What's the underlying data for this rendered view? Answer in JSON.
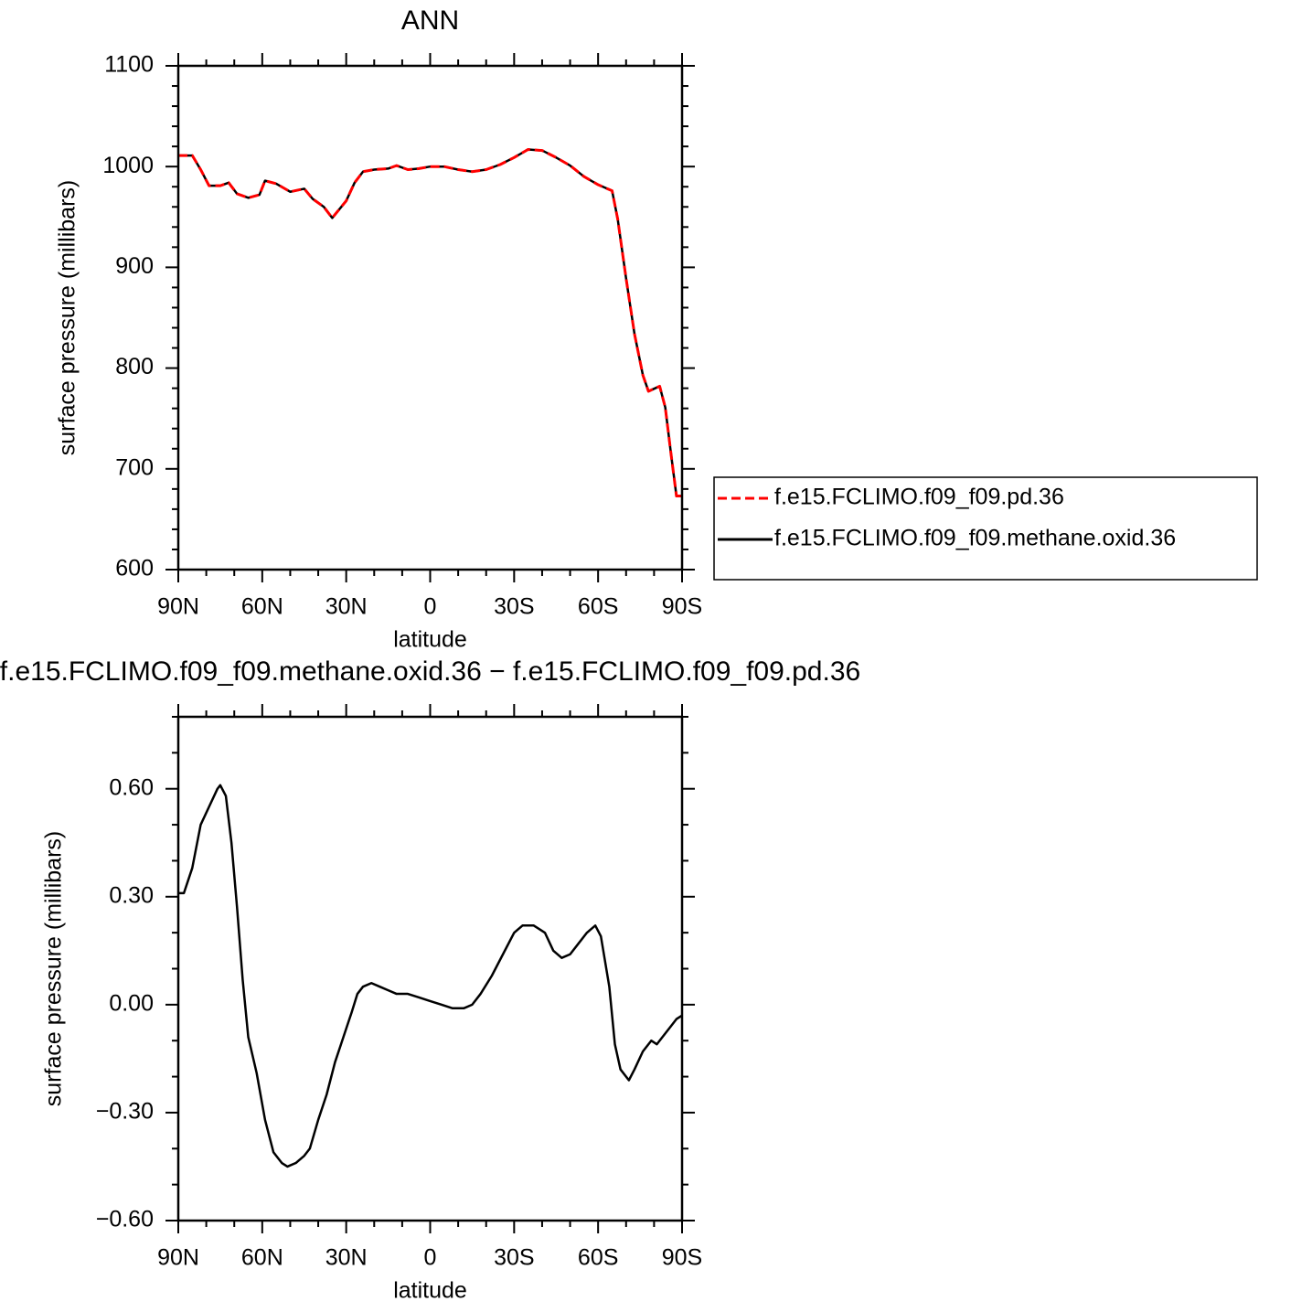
{
  "chart_data": [
    {
      "type": "line",
      "title": "ANN",
      "xlabel": "latitude",
      "ylabel": "surface pressure (millibars)",
      "x": [
        90,
        85,
        82,
        79,
        75,
        72,
        69,
        65,
        61,
        59,
        55,
        50,
        45,
        42,
        38,
        35,
        30,
        27,
        24,
        20,
        15,
        12,
        8,
        4,
        0,
        -5,
        -10,
        -15,
        -20,
        -25,
        -30,
        -35,
        -40,
        -45,
        -50,
        -55,
        -60,
        -65,
        -67,
        -70,
        -73,
        -76,
        -78,
        -82,
        -84,
        -86,
        -88,
        -90
      ],
      "xlim": [
        90,
        -90
      ],
      "xticks": [
        {
          "value": 90,
          "label": "90N"
        },
        {
          "value": 60,
          "label": "60N"
        },
        {
          "value": 30,
          "label": "30N"
        },
        0,
        {
          "value": -30,
          "label": "30S"
        },
        {
          "value": -60,
          "label": "60S"
        },
        {
          "value": -90,
          "label": "90S"
        }
      ],
      "ylim": [
        600,
        1100
      ],
      "yticks": [
        600,
        700,
        800,
        900,
        1000,
        1100
      ],
      "legend": "right",
      "series": [
        {
          "name": "f.e15.FCLIMO.f09_f09.pd.36",
          "color": "#ff0000",
          "linestyle": "dashed",
          "values": [
            1011,
            1011,
            997,
            981,
            981,
            984,
            973,
            969,
            972,
            986,
            983,
            975,
            978,
            968,
            960,
            949,
            966,
            984,
            995,
            997,
            998,
            1001,
            997,
            998,
            1000,
            1000,
            997,
            995,
            997,
            1002,
            1009,
            1017,
            1016,
            1009,
            1001,
            990,
            982,
            976,
            948,
            889,
            834,
            793,
            777,
            782,
            761,
            716,
            673,
            673
          ]
        },
        {
          "name": "f.e15.FCLIMO.f09_f09.methane.oxid.36",
          "color": "#000000",
          "linestyle": "solid",
          "values": [
            1011,
            1011,
            997,
            981,
            981,
            984,
            973,
            969,
            972,
            986,
            983,
            975,
            978,
            968,
            960,
            949,
            966,
            984,
            995,
            997,
            998,
            1001,
            997,
            998,
            1000,
            1000,
            997,
            995,
            997,
            1002,
            1009,
            1017,
            1016,
            1009,
            1001,
            990,
            982,
            976,
            948,
            889,
            834,
            793,
            777,
            782,
            761,
            716,
            673,
            673
          ]
        }
      ]
    },
    {
      "type": "line",
      "title": "f.e15.FCLIMO.f09_f09.methane.oxid.36 − f.e15.FCLIMO.f09_f09.pd.36",
      "xlabel": "latitude",
      "ylabel": "surface pressure (millibars)",
      "x": [
        90,
        88,
        85,
        82,
        79,
        76,
        75,
        73,
        71,
        69,
        67,
        65,
        62,
        59,
        56,
        53,
        51,
        48,
        45,
        43,
        40,
        37,
        34,
        31,
        28,
        26,
        24,
        21,
        18,
        15,
        12,
        8,
        4,
        0,
        -4,
        -8,
        -12,
        -15,
        -18,
        -22,
        -26,
        -30,
        -33,
        -37,
        -41,
        -44,
        -47,
        -50,
        -53,
        -56,
        -59,
        -61,
        -64,
        -66,
        -68,
        -71,
        -73,
        -76,
        -79,
        -81,
        -83,
        -86,
        -88,
        -90
      ],
      "xlim": [
        90,
        -90
      ],
      "xticks": [
        {
          "value": 90,
          "label": "90N"
        },
        {
          "value": 60,
          "label": "60N"
        },
        {
          "value": 30,
          "label": "30N"
        },
        0,
        {
          "value": -30,
          "label": "30S"
        },
        {
          "value": -60,
          "label": "60S"
        },
        {
          "value": -90,
          "label": "90S"
        }
      ],
      "ylim": [
        -0.6,
        0.8
      ],
      "yticks": [
        {
          "value": -0.6,
          "label": "−0.60"
        },
        {
          "value": -0.3,
          "label": "−0.30"
        },
        {
          "value": 0,
          "label": "0.00"
        },
        {
          "value": 0.3,
          "label": "0.30"
        },
        {
          "value": 0.6,
          "label": "0.60"
        }
      ],
      "series": [
        {
          "color": "#000000",
          "linestyle": "solid",
          "values": [
            0.31,
            0.31,
            0.38,
            0.5,
            0.55,
            0.6,
            0.61,
            0.58,
            0.45,
            0.27,
            0.07,
            -0.09,
            -0.19,
            -0.32,
            -0.41,
            -0.44,
            -0.45,
            -0.44,
            -0.42,
            -0.4,
            -0.32,
            -0.25,
            -0.16,
            -0.09,
            -0.02,
            0.03,
            0.05,
            0.06,
            0.05,
            0.04,
            0.03,
            0.03,
            0.02,
            0.01,
            0.0,
            -0.01,
            -0.01,
            0.0,
            0.03,
            0.08,
            0.14,
            0.2,
            0.22,
            0.22,
            0.2,
            0.15,
            0.13,
            0.14,
            0.17,
            0.2,
            0.22,
            0.19,
            0.05,
            -0.11,
            -0.18,
            -0.21,
            -0.18,
            -0.13,
            -0.1,
            -0.11,
            -0.09,
            -0.06,
            -0.04,
            -0.03
          ]
        }
      ]
    }
  ]
}
